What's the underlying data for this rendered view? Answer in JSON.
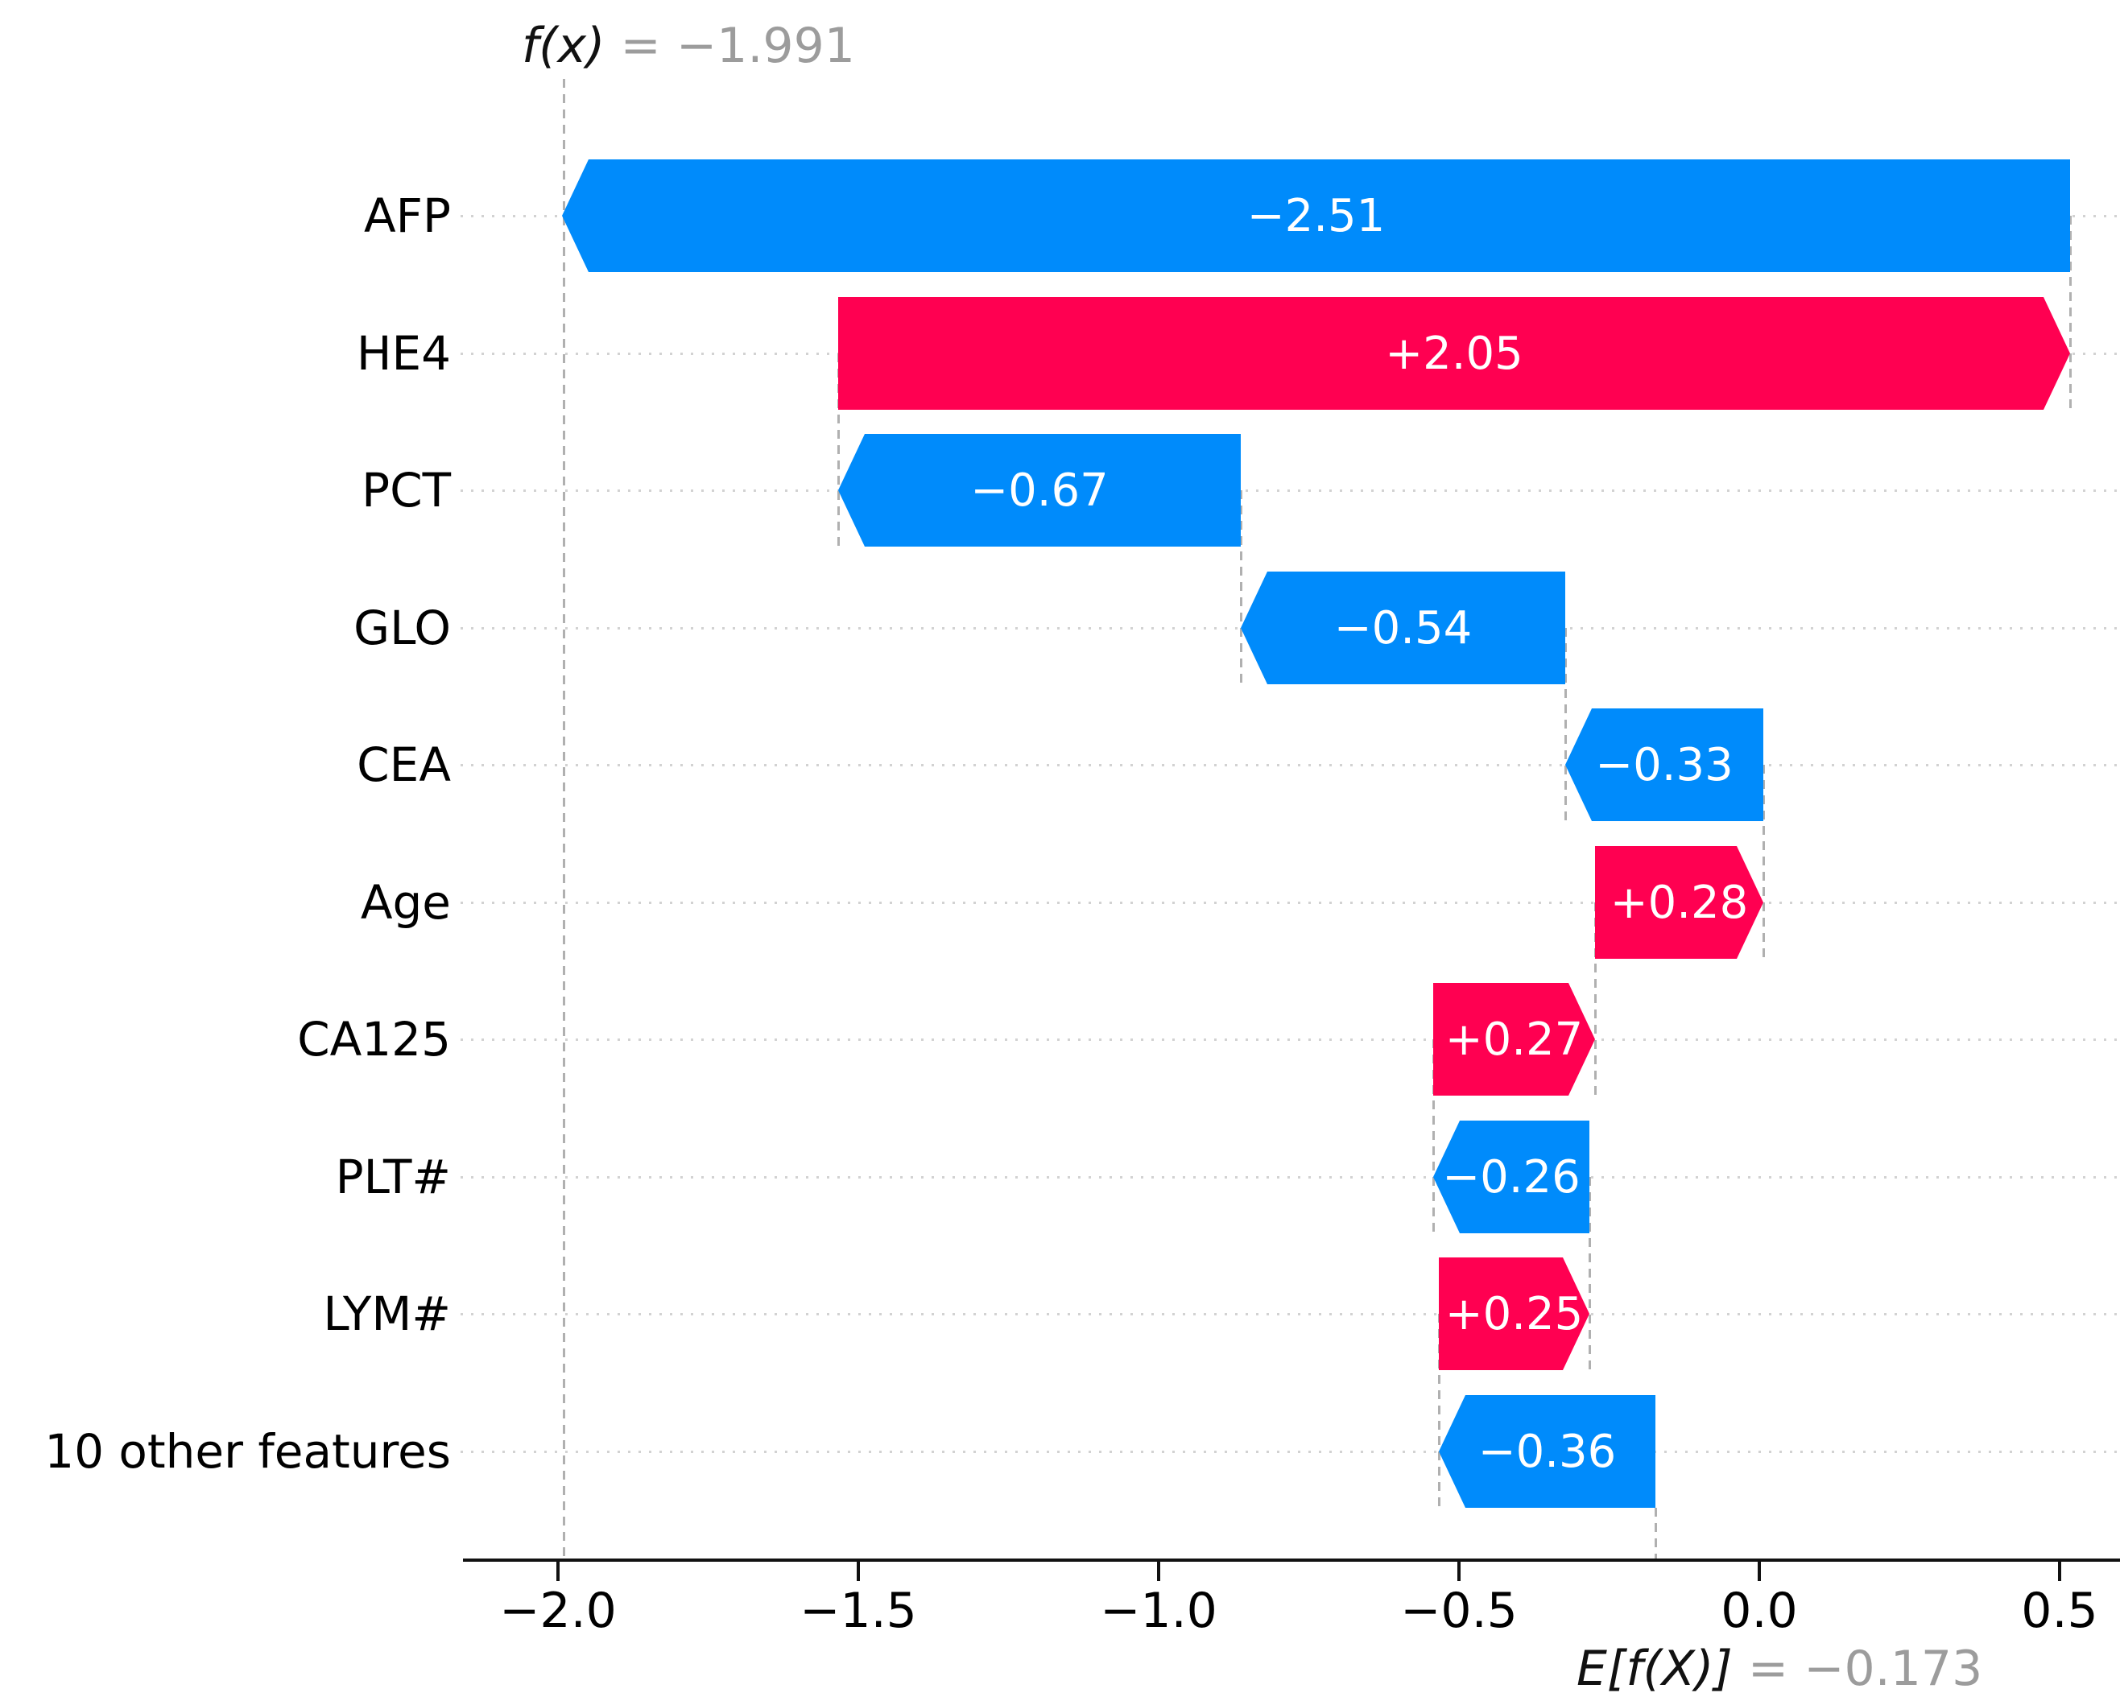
{
  "chart_data": {
    "type": "bar",
    "subtype": "shap-waterfall-horizontal",
    "title": "",
    "fx_annotation": {
      "label": "f(x)",
      "equals_text": " = −1.991",
      "value": -1.991
    },
    "expected_annotation": {
      "label": "E[f(X)]",
      "equals_text": " = −0.173",
      "value": -0.173
    },
    "base_value": -0.173,
    "categories": [
      "AFP",
      "HE4",
      "PCT",
      "GLO",
      "CEA",
      "Age",
      "CA125",
      "PLT#",
      "LYM#",
      "10 other features"
    ],
    "values": [
      -2.51,
      2.05,
      -0.67,
      -0.54,
      -0.33,
      0.28,
      0.27,
      -0.26,
      0.25,
      -0.36
    ],
    "bar_labels": [
      "−2.51",
      "+2.05",
      "−0.67",
      "−0.54",
      "−0.33",
      "+0.28",
      "+0.27",
      "−0.26",
      "+0.25",
      "−0.36"
    ],
    "x_ticks": [
      -2.0,
      -1.5,
      -1.0,
      -0.5,
      0.0,
      0.5
    ],
    "x_tick_labels": [
      "−2.0",
      "−1.5",
      "−1.0",
      "−0.5",
      "0.0",
      "0.5"
    ],
    "xlim": [
      -2.16,
      0.6
    ],
    "xlabel": "",
    "ylabel": "",
    "grid": "dotted-horizontal-rows",
    "legend_position": "none",
    "colors": {
      "positive_bar": "#ff0051",
      "negative_bar": "#008bfb",
      "bar_text": "#ffffff",
      "connector_line": "#b0b0b0",
      "row_gridline": "#d2d2d2",
      "axis": "#111111",
      "text": "#000000",
      "annotation_gray": "#9c9c9c"
    }
  }
}
